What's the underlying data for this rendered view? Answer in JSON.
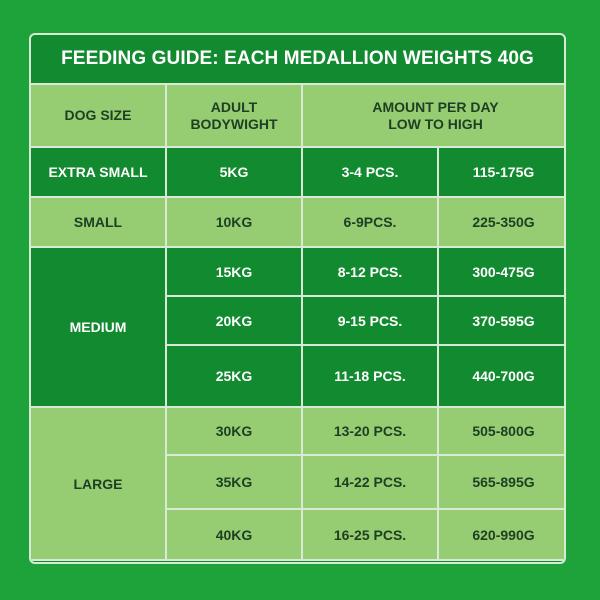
{
  "title": "FEEDING GUIDE: EACH MEDALLION WEIGHTS 40G",
  "headers": {
    "dog_size": "DOG SIZE",
    "adult_line1": "ADULT",
    "adult_line2": "BODYWIGHT",
    "amount_line1": "AMOUNT PER DAY",
    "amount_line2": "LOW TO HIGH"
  },
  "rows": [
    {
      "size": "EXTRA SMALL",
      "weight": "5KG",
      "pieces": "3-4 PCS.",
      "grams": "115-175G"
    },
    {
      "size": "SMALL",
      "weight": "10KG",
      "pieces": "6-9PCS.",
      "grams": "225-350G"
    },
    {
      "size": "MEDIUM",
      "weight": "15KG",
      "pieces": "8-12 PCS.",
      "grams": "300-475G"
    },
    {
      "size": "",
      "weight": "20KG",
      "pieces": "9-15 PCS.",
      "grams": "370-595G"
    },
    {
      "size": "",
      "weight": "25KG",
      "pieces": "11-18 PCS.",
      "grams": "440-700G"
    },
    {
      "size": "LARGE",
      "weight": "30KG",
      "pieces": "13-20 PCS.",
      "grams": "505-800G"
    },
    {
      "size": "",
      "weight": "35KG",
      "pieces": "14-22 PCS.",
      "grams": "565-895G"
    },
    {
      "size": "",
      "weight": "40KG",
      "pieces": "16-25 PCS.",
      "grams": "620-990G"
    }
  ],
  "colors": {
    "background": "#1ea33b",
    "dark_green": "#128a2f",
    "light_green": "#96cc72",
    "border": "#d8e9d6"
  }
}
